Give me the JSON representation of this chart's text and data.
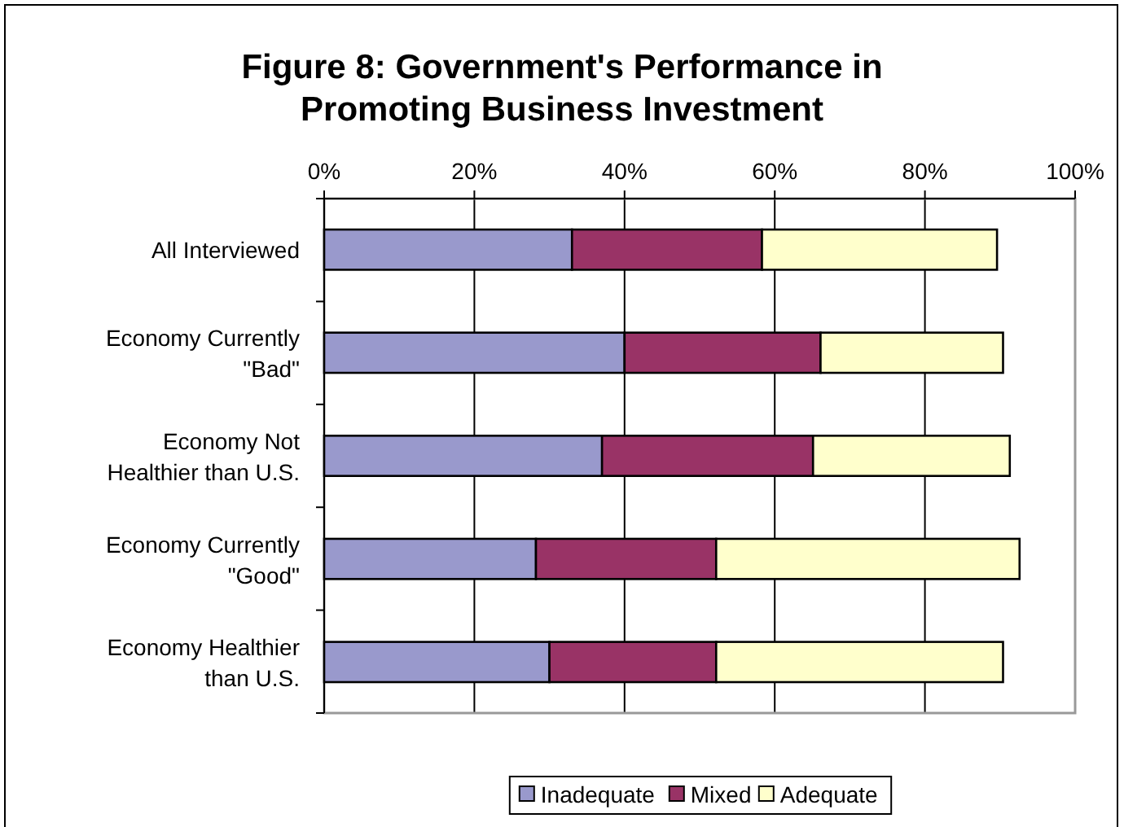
{
  "chart_data": {
    "type": "bar",
    "orientation": "horizontal",
    "stacked": true,
    "title": "Figure 8: Government's Performance in Promoting Business Investment",
    "categories": [
      "All Interviewed",
      "Economy Currently \"Bad\"",
      "Economy Not Healthier than U.S.",
      "Economy Currently \"Good\"",
      "Economy Healthier than U.S."
    ],
    "series": [
      {
        "name": "Inadequate",
        "color": "#9999cc",
        "values": [
          33,
          40,
          37,
          28.2,
          30
        ]
      },
      {
        "name": "Mixed",
        "color": "#993366",
        "values": [
          25.3,
          26.1,
          28.1,
          24,
          22.2
        ]
      },
      {
        "name": "Adequate",
        "color": "#ffffcc",
        "values": [
          31.3,
          24.3,
          26.2,
          40.4,
          38.2
        ]
      }
    ],
    "xlim": [
      0,
      100
    ],
    "xticks": [
      {
        "value": 0,
        "label": "0%"
      },
      {
        "value": 20,
        "label": "20%"
      },
      {
        "value": 40,
        "label": "40%"
      },
      {
        "value": 60,
        "label": "60%"
      },
      {
        "value": 80,
        "label": "80%"
      },
      {
        "value": 100,
        "label": "100%"
      }
    ],
    "grid": "x",
    "legend": "bottom"
  }
}
